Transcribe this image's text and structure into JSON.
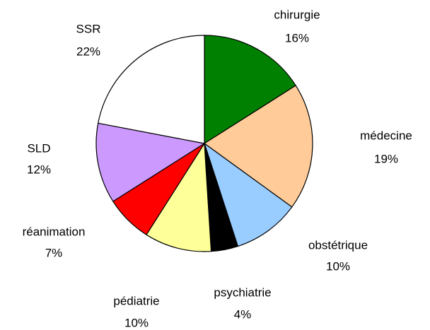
{
  "chart_data": {
    "type": "pie",
    "categories": [
      "chirurgie",
      "médecine",
      "obstétrique",
      "psychiatrie",
      "pédiatrie",
      "réanimation",
      "SLD",
      "SSR"
    ],
    "values": [
      16,
      19,
      10,
      4,
      10,
      7,
      12,
      22
    ],
    "value_labels": [
      "16%",
      "19%",
      "10%",
      "4%",
      "10%",
      "7%",
      "12%",
      "22%"
    ],
    "colors": [
      "#008000",
      "#ffcc99",
      "#99ccff",
      "#000000",
      "#ffff99",
      "#ff0000",
      "#cc99ff",
      "#ffffff"
    ]
  }
}
